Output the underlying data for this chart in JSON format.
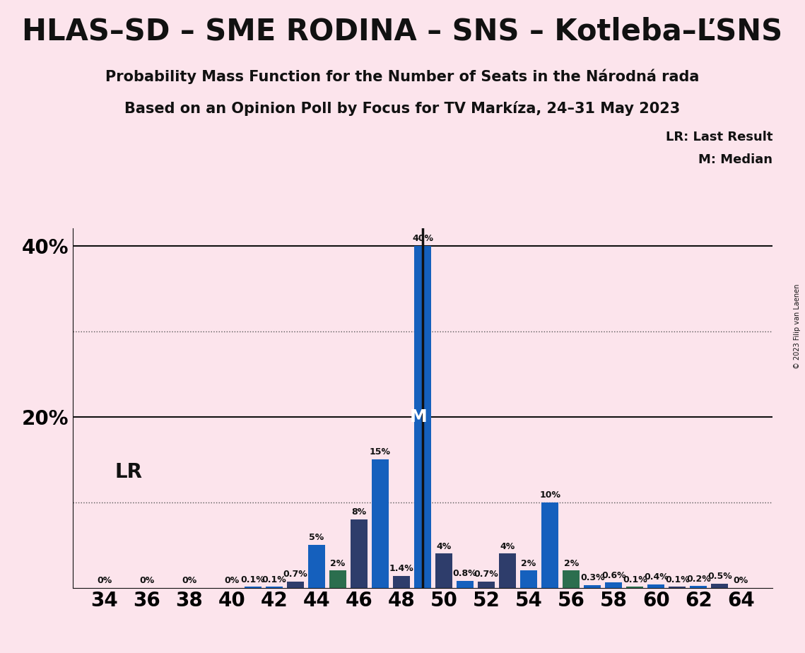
{
  "title": "HLAS–SD – SME RODINA – SNS – Kotleba–ĽSNS",
  "subtitle1": "Probability Mass Function for the Number of Seats in the Národná rada",
  "subtitle2": "Based on an Opinion Poll by Focus for TV Markíza, 24–31 May 2023",
  "copyright": "© 2023 Filip van Laenen",
  "background_color": "#fce4ec",
  "bar_data": [
    {
      "seat": 34,
      "value": 0.0,
      "color": "#1560bd"
    },
    {
      "seat": 36,
      "value": 0.0,
      "color": "#1560bd"
    },
    {
      "seat": 38,
      "value": 0.0,
      "color": "#1560bd"
    },
    {
      "seat": 40,
      "value": 0.0,
      "color": "#1560bd"
    },
    {
      "seat": 41,
      "value": 0.1,
      "color": "#1560bd"
    },
    {
      "seat": 42,
      "value": 0.1,
      "color": "#1560bd"
    },
    {
      "seat": 43,
      "value": 0.7,
      "color": "#2e3d6b"
    },
    {
      "seat": 44,
      "value": 5.0,
      "color": "#1560bd"
    },
    {
      "seat": 45,
      "value": 2.0,
      "color": "#2b6e4e"
    },
    {
      "seat": 46,
      "value": 8.0,
      "color": "#2e3d6b"
    },
    {
      "seat": 47,
      "value": 15.0,
      "color": "#1560bd"
    },
    {
      "seat": 48,
      "value": 1.4,
      "color": "#2e3d6b"
    },
    {
      "seat": 49,
      "value": 40.0,
      "color": "#1560bd"
    },
    {
      "seat": 50,
      "value": 4.0,
      "color": "#2e3d6b"
    },
    {
      "seat": 51,
      "value": 0.8,
      "color": "#1560bd"
    },
    {
      "seat": 52,
      "value": 0.7,
      "color": "#2e3d6b"
    },
    {
      "seat": 53,
      "value": 4.0,
      "color": "#2e3d6b"
    },
    {
      "seat": 54,
      "value": 2.0,
      "color": "#1560bd"
    },
    {
      "seat": 55,
      "value": 10.0,
      "color": "#1560bd"
    },
    {
      "seat": 56,
      "value": 2.0,
      "color": "#2b6e4e"
    },
    {
      "seat": 57,
      "value": 0.3,
      "color": "#1560bd"
    },
    {
      "seat": 58,
      "value": 0.6,
      "color": "#1560bd"
    },
    {
      "seat": 59,
      "value": 0.1,
      "color": "#2b6e4e"
    },
    {
      "seat": 60,
      "value": 0.4,
      "color": "#1560bd"
    },
    {
      "seat": 61,
      "value": 0.1,
      "color": "#2e3d6b"
    },
    {
      "seat": 62,
      "value": 0.2,
      "color": "#1560bd"
    },
    {
      "seat": 63,
      "value": 0.5,
      "color": "#2e3d6b"
    },
    {
      "seat": 64,
      "value": 0.0,
      "color": "#1560bd"
    }
  ],
  "lr_seat": 49,
  "median_seat": 49,
  "ylim": [
    0,
    42
  ],
  "xlim": [
    32.5,
    65.5
  ],
  "ytick_positions": [
    20,
    40
  ],
  "ytick_labels": [
    "20%",
    "40%"
  ],
  "xticks": [
    34,
    36,
    38,
    40,
    42,
    44,
    46,
    48,
    50,
    52,
    54,
    56,
    58,
    60,
    62,
    64
  ],
  "solid_hlines": [
    20,
    40
  ],
  "dotted_hlines": [
    10,
    30
  ],
  "title_fontsize": 30,
  "subtitle_fontsize": 15,
  "axis_tick_fontsize": 20,
  "bar_label_fontsize": 9,
  "lr_label_fontsize": 20,
  "legend_fontsize": 13
}
